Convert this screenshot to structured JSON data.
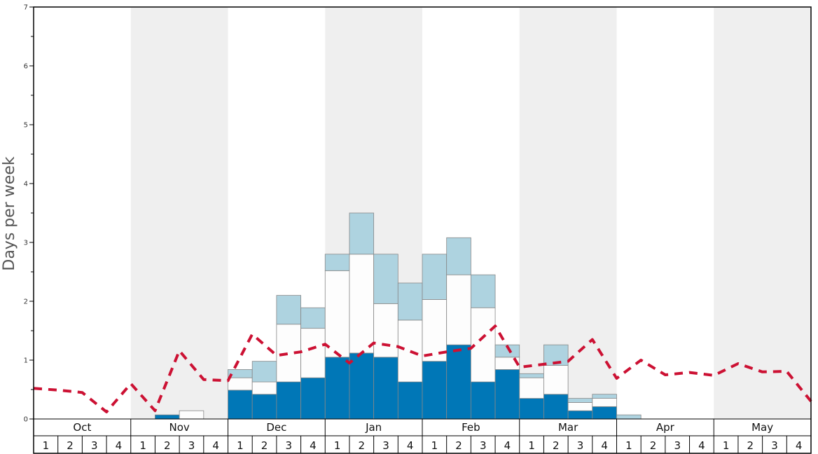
{
  "chart_data": {
    "type": "bar",
    "stacked": true,
    "ylabel": "Days per week",
    "ylim": [
      0,
      7
    ],
    "y_ticks": [
      "0",
      "1",
      "2",
      "3",
      "4",
      "5",
      "6",
      "7"
    ],
    "months": [
      "Oct",
      "Nov",
      "Dec",
      "Jan",
      "Feb",
      "Mar",
      "Apr",
      "May"
    ],
    "weeks": [
      "1",
      "2",
      "3",
      "4"
    ],
    "alternating_month_shading": true,
    "colors": {
      "series_bottom": "#0077b7",
      "series_middle": "#fdfdfd",
      "series_top": "#aed3e0",
      "line": "#cc1133",
      "shade": "#efefef",
      "frame": "#000000"
    },
    "series": [
      {
        "values": [
          0,
          0,
          0,
          0,
          0,
          0.07,
          0,
          0,
          0.49,
          0.42,
          0.63,
          0.7,
          1.05,
          1.12,
          1.05,
          0.63,
          0.98,
          1.26,
          0.63,
          0.84,
          0.35,
          0.42,
          0.14,
          0.21,
          0,
          0,
          0,
          0,
          0,
          0,
          0,
          0
        ]
      },
      {
        "values": [
          0,
          0,
          0,
          0,
          0,
          0,
          0.14,
          0,
          0.21,
          0.21,
          0.98,
          0.84,
          1.47,
          1.68,
          0.91,
          1.05,
          1.05,
          1.19,
          1.26,
          0.21,
          0.35,
          0.49,
          0.14,
          0.14,
          0,
          0,
          0,
          0,
          0,
          0,
          0,
          0
        ]
      },
      {
        "values": [
          0,
          0,
          0,
          0,
          0,
          0,
          0,
          0,
          0.14,
          0.35,
          0.49,
          0.35,
          0.28,
          0.7,
          0.84,
          0.63,
          0.77,
          0.63,
          0.56,
          0.21,
          0.07,
          0.35,
          0.07,
          0.07,
          0.07,
          0,
          0,
          0,
          0,
          0,
          0,
          0
        ]
      },
      {
        "type": "line",
        "style": "dashed",
        "values": [
          0.52,
          0.49,
          0.45,
          0.12,
          0.6,
          0.14,
          1.16,
          0.67,
          0.65,
          1.44,
          1.08,
          1.14,
          1.27,
          0.95,
          1.29,
          1.23,
          1.07,
          1.14,
          1.2,
          1.58,
          0.88,
          0.93,
          0.98,
          1.35,
          0.69,
          1.0,
          0.75,
          0.79,
          0.74,
          0.94,
          0.8,
          0.81
        ]
      }
    ],
    "line_endpoint_value": 0.3
  }
}
